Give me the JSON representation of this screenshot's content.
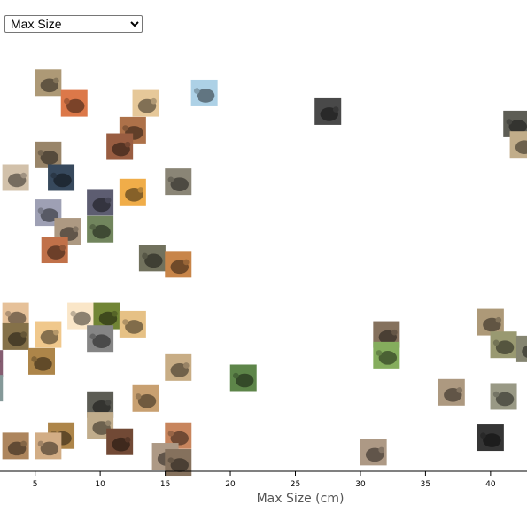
{
  "controls": {
    "sort_select": {
      "selected": "Max Size",
      "options": [
        "Max Size"
      ]
    }
  },
  "chart_data": {
    "type": "scatter",
    "xlabel": "Max Size (cm)",
    "ylabel": "",
    "x_ticks": [
      5,
      10,
      15,
      20,
      25,
      30,
      35,
      40
    ],
    "xlim": [
      2.3,
      42.8
    ],
    "grid": false,
    "legend": "none",
    "points": [
      {
        "x": 6,
        "row": 1,
        "hue": "#8a7a5e"
      },
      {
        "x": 8,
        "row": 2,
        "hue": "#b0603a"
      },
      {
        "x": 13.5,
        "row": 2,
        "hue": "#b8a07a"
      },
      {
        "x": 18,
        "row": 1.5,
        "hue": "#8aa7b8"
      },
      {
        "x": 27.5,
        "row": 2.4,
        "hue": "#3a3a3a"
      },
      {
        "x": 42,
        "row": 3,
        "hue": "#4a4a44"
      },
      {
        "x": 42.5,
        "row": 4,
        "hue": "#9a8a6e"
      },
      {
        "x": 12.5,
        "row": 3.3,
        "hue": "#8a5a3a"
      },
      {
        "x": 11.5,
        "row": 4.1,
        "hue": "#7a4a34"
      },
      {
        "x": 6,
        "row": 4.5,
        "hue": "#7a6a54"
      },
      {
        "x": 3.5,
        "row": 5.6,
        "hue": "#a89a88"
      },
      {
        "x": 7,
        "row": 5.6,
        "hue": "#2c3a4a"
      },
      {
        "x": 12.5,
        "row": 6.3,
        "hue": "#c08a3a"
      },
      {
        "x": 16,
        "row": 5.8,
        "hue": "#6e6a5e"
      },
      {
        "x": 10,
        "row": 6.8,
        "hue": "#4a4a5a"
      },
      {
        "x": 6,
        "row": 7.3,
        "hue": "#7e8090"
      },
      {
        "x": 7.5,
        "row": 8.2,
        "hue": "#8a7a68"
      },
      {
        "x": 10,
        "row": 8.1,
        "hue": "#5a6a4a"
      },
      {
        "x": 6.5,
        "row": 9.1,
        "hue": "#9a5a3a"
      },
      {
        "x": 14,
        "row": 9.5,
        "hue": "#5a5a4a"
      },
      {
        "x": 16,
        "row": 9.8,
        "hue": "#a06a3a"
      },
      {
        "x": 3.5,
        "row": 12.3,
        "hue": "#b89a7a"
      },
      {
        "x": 3.5,
        "row": 13.3,
        "hue": "#6a5a3a"
      },
      {
        "x": 8.5,
        "row": 12.3,
        "hue": "#c8b8a0"
      },
      {
        "x": 10.5,
        "row": 12.3,
        "hue": "#5a6a2a"
      },
      {
        "x": 12.5,
        "row": 12.7,
        "hue": "#b89a6a"
      },
      {
        "x": 6,
        "row": 13.2,
        "hue": "#c0a070"
      },
      {
        "x": 10,
        "row": 13.4,
        "hue": "#6a6a6a"
      },
      {
        "x": 1.5,
        "row": 14.6,
        "hue": "#6a4a5a"
      },
      {
        "x": 5.5,
        "row": 14.5,
        "hue": "#8a6a3a"
      },
      {
        "x": 16,
        "row": 14.8,
        "hue": "#a08a6a"
      },
      {
        "x": 21,
        "row": 15.3,
        "hue": "#4a6a3a"
      },
      {
        "x": 32,
        "row": 13.2,
        "hue": "#6a5a4a"
      },
      {
        "x": 32,
        "row": 14.2,
        "hue": "#6a8a4a"
      },
      {
        "x": 40,
        "row": 12.6,
        "hue": "#8a7a60"
      },
      {
        "x": 41,
        "row": 13.7,
        "hue": "#7a7a5a"
      },
      {
        "x": 43,
        "row": 13.9,
        "hue": "#6a6a5a"
      },
      {
        "x": 1.5,
        "row": 15.8,
        "hue": "#6a7a7a"
      },
      {
        "x": 10,
        "row": 16.6,
        "hue": "#4a4a44"
      },
      {
        "x": 13.5,
        "row": 16.3,
        "hue": "#a0805a"
      },
      {
        "x": 37,
        "row": 16.0,
        "hue": "#8a7a66"
      },
      {
        "x": 41,
        "row": 16.2,
        "hue": "#7a7a6a"
      },
      {
        "x": 10,
        "row": 17.6,
        "hue": "#9a8a70"
      },
      {
        "x": 7,
        "row": 18.1,
        "hue": "#8a6a3a"
      },
      {
        "x": 3.5,
        "row": 18.6,
        "hue": "#8a6a4a"
      },
      {
        "x": 6,
        "row": 18.6,
        "hue": "#a88a6a"
      },
      {
        "x": 11.5,
        "row": 18.4,
        "hue": "#5a3a2a"
      },
      {
        "x": 16,
        "row": 18.1,
        "hue": "#a06a4a"
      },
      {
        "x": 15,
        "row": 19.1,
        "hue": "#8a7a6a"
      },
      {
        "x": 16,
        "row": 19.4,
        "hue": "#6a5a4a"
      },
      {
        "x": 31,
        "row": 18.9,
        "hue": "#8a7a6a"
      },
      {
        "x": 40,
        "row": 18.2,
        "hue": "#2a2a2a"
      }
    ]
  }
}
